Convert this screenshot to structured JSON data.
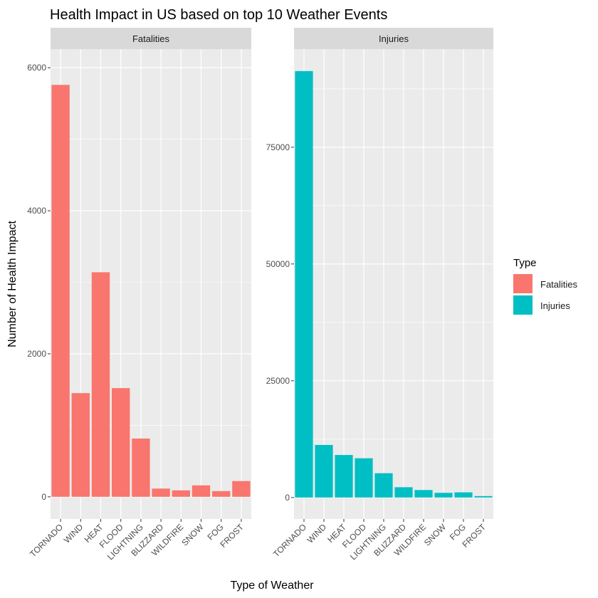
{
  "chart_data": {
    "type": "bar",
    "title": "Health Impact in US based on top 10 Weather Events",
    "xlabel": "Type of Weather",
    "ylabel": "Number of Health Impact",
    "categories": [
      "TORNADO",
      "WIND",
      "HEAT",
      "FLOOD",
      "LIGHTNING",
      "BLIZZARD",
      "WILDFIRE",
      "SNOW",
      "FOG",
      "FROST"
    ],
    "legend": {
      "title": "Type",
      "placement": "right",
      "entries": [
        {
          "label": "Fatalities",
          "color": "#F8766D"
        },
        {
          "label": "Injuries",
          "color": "#00BFC4"
        }
      ]
    },
    "grid": true,
    "panels": [
      {
        "strip": "Fatalities",
        "color": "#F8766D",
        "values": [
          5760,
          1450,
          3140,
          1520,
          815,
          115,
          90,
          160,
          80,
          220
        ],
        "ylim": [
          -310,
          6260
        ],
        "yticks": [
          0,
          2000,
          4000,
          6000
        ],
        "ytick_labels": [
          "0",
          "2000",
          "4000",
          "6000"
        ]
      },
      {
        "strip": "Injuries",
        "color": "#00BFC4",
        "values": [
          91300,
          11250,
          9100,
          8400,
          5200,
          2200,
          1600,
          1000,
          1100,
          300
        ],
        "ylim": [
          -4600,
          96000
        ],
        "yticks": [
          0,
          25000,
          50000,
          75000
        ],
        "ytick_labels": [
          "0",
          "25000",
          "50000",
          "75000"
        ]
      }
    ]
  }
}
